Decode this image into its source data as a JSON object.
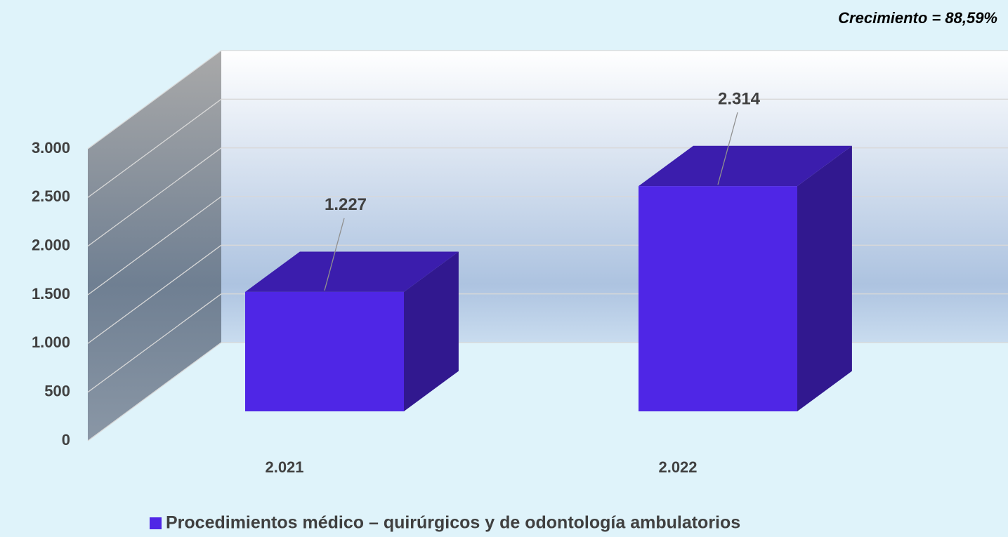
{
  "chart_data": {
    "type": "bar3d",
    "annotation": "Crecimiento = 88,59%",
    "categories": [
      "2.021",
      "2.022"
    ],
    "series": [
      {
        "name": "Procedimientos médico – quirúrgicos y de odontología ambulatorios",
        "color": "#4f26e6",
        "values": [
          1227,
          2314
        ],
        "value_labels": [
          "1.227",
          "2.314"
        ]
      }
    ],
    "ylim": [
      0,
      3000
    ],
    "yticks": [
      0,
      500,
      {
        "value": 1000,
        "label": "1.000"
      },
      {
        "value": 1500,
        "label": "1.500"
      },
      {
        "value": 2000,
        "label": "2.000"
      },
      {
        "value": 2500,
        "label": "2.500"
      },
      {
        "value": 3000,
        "label": "3.000"
      }
    ],
    "grid": true,
    "legend": "bottom"
  }
}
